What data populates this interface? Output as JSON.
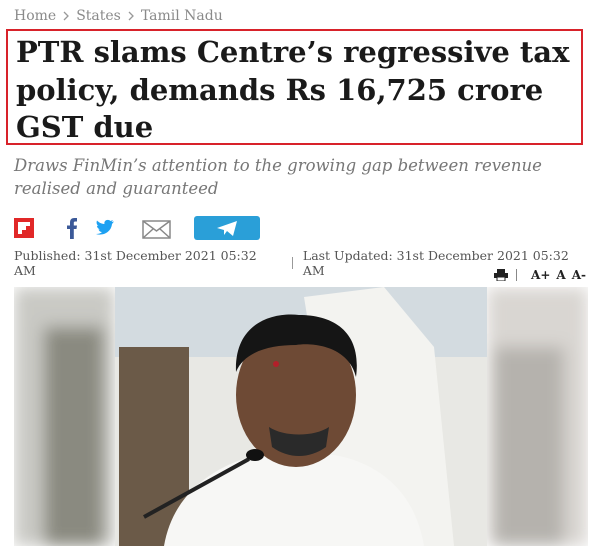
{
  "breadcrumb": [
    "Home",
    "States",
    "Tamil Nadu"
  ],
  "headline": "PTR slams Centre’s regressive tax policy, demands Rs 16,725 crore GST due",
  "subtitle": "Draws FinMin’s attention to the growing gap between revenue realised and guaranteed",
  "published": "Published: 31st December 2021 05:32 AM",
  "updated": "Last Updated: 31st December 2021 05:32 AM",
  "font_controls": [
    "A+",
    "A",
    "A-"
  ]
}
